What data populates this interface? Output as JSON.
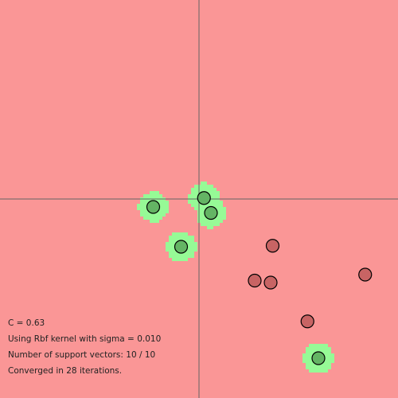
{
  "colors": {
    "background": "#fa9696",
    "positive_region": "#96fa96",
    "positive_point": "#64b464",
    "negative_point": "#c86464",
    "point_stroke": "#000000",
    "axis": "#646464",
    "text": "#222222"
  },
  "plot": {
    "x_range": [
      -1,
      1
    ],
    "y_range": [
      -1,
      1
    ],
    "axes_visible": true,
    "region_style": "pixelated rbf decision region"
  },
  "points": [
    {
      "x": -0.23,
      "y": -0.04,
      "label": 1
    },
    {
      "x": 0.025,
      "y": 0.005,
      "label": 1
    },
    {
      "x": 0.06,
      "y": -0.07,
      "label": 1
    },
    {
      "x": -0.09,
      "y": -0.24,
      "label": 1
    },
    {
      "x": 0.6,
      "y": -0.8,
      "label": 1
    },
    {
      "x": 0.37,
      "y": -0.235,
      "label": -1
    },
    {
      "x": 0.28,
      "y": -0.41,
      "label": -1
    },
    {
      "x": 0.36,
      "y": -0.42,
      "label": -1
    },
    {
      "x": 0.835,
      "y": -0.38,
      "label": -1
    },
    {
      "x": 0.545,
      "y": -0.615,
      "label": -1
    }
  ],
  "info": {
    "c_text": "C = 0.63",
    "kernel_text": "Using Rbf kernel with sigma = 0.010",
    "sv_text": "Number of support vectors: 10 / 10",
    "iter_text": "Converged in 28 iterations."
  }
}
